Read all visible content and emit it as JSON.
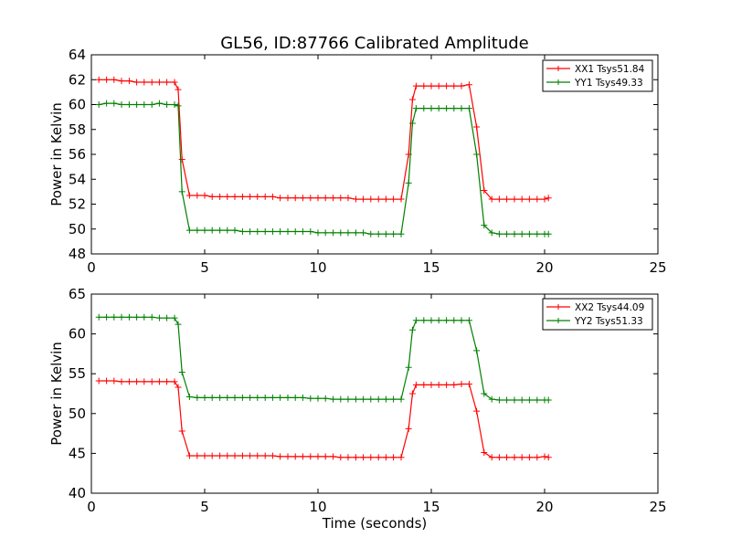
{
  "title": "GL56, ID:87766 Calibrated Amplitude",
  "xlabel": "Time (seconds)",
  "colors": {
    "red": "#ff0000",
    "green": "#008000",
    "axis": "#000000"
  },
  "chart_data": [
    {
      "type": "line",
      "title": "GL56, ID:87766 Calibrated Amplitude",
      "xlabel": "",
      "ylabel": "Power in Kelvin",
      "xlim": [
        0,
        25
      ],
      "ylim": [
        48,
        64
      ],
      "xticks": [
        0,
        5,
        10,
        15,
        20,
        25
      ],
      "yticks": [
        48,
        50,
        52,
        54,
        56,
        58,
        60,
        62,
        64
      ],
      "legend": "top-right",
      "grid": false,
      "x": [
        0.33,
        0.67,
        1.0,
        1.33,
        1.67,
        2.0,
        2.33,
        2.67,
        3.0,
        3.33,
        3.67,
        3.83,
        4.0,
        4.33,
        4.67,
        5.0,
        5.33,
        5.67,
        6.0,
        6.33,
        6.67,
        7.0,
        7.33,
        7.67,
        8.0,
        8.33,
        8.67,
        9.0,
        9.33,
        9.67,
        10.0,
        10.33,
        10.67,
        11.0,
        11.33,
        11.67,
        12.0,
        12.33,
        12.67,
        13.0,
        13.33,
        13.67,
        14.0,
        14.17,
        14.33,
        14.67,
        15.0,
        15.33,
        15.67,
        16.0,
        16.33,
        16.67,
        17.0,
        17.33,
        17.67,
        18.0,
        18.33,
        18.67,
        19.0,
        19.33,
        19.67,
        20.0,
        20.17
      ],
      "series": [
        {
          "name": "XX1 Tsys51.84",
          "color": "#ff0000",
          "values": [
            62.0,
            62.0,
            62.0,
            61.9,
            61.9,
            61.8,
            61.8,
            61.8,
            61.8,
            61.8,
            61.8,
            61.2,
            55.6,
            52.7,
            52.7,
            52.7,
            52.6,
            52.6,
            52.6,
            52.6,
            52.6,
            52.6,
            52.6,
            52.6,
            52.6,
            52.5,
            52.5,
            52.5,
            52.5,
            52.5,
            52.5,
            52.5,
            52.5,
            52.5,
            52.5,
            52.4,
            52.4,
            52.4,
            52.4,
            52.4,
            52.4,
            52.4,
            56.0,
            60.4,
            61.5,
            61.5,
            61.5,
            61.5,
            61.5,
            61.5,
            61.5,
            61.6,
            58.2,
            53.1,
            52.4,
            52.4,
            52.4,
            52.4,
            52.4,
            52.4,
            52.4,
            52.4,
            52.5
          ]
        },
        {
          "name": "YY1 Tsys49.33",
          "color": "#008000",
          "values": [
            60.0,
            60.1,
            60.1,
            60.0,
            60.0,
            60.0,
            60.0,
            60.0,
            60.1,
            60.0,
            60.0,
            59.9,
            53.0,
            49.9,
            49.9,
            49.9,
            49.9,
            49.9,
            49.9,
            49.9,
            49.8,
            49.8,
            49.8,
            49.8,
            49.8,
            49.8,
            49.8,
            49.8,
            49.8,
            49.8,
            49.7,
            49.7,
            49.7,
            49.7,
            49.7,
            49.7,
            49.7,
            49.6,
            49.6,
            49.6,
            49.6,
            49.6,
            53.7,
            58.5,
            59.7,
            59.7,
            59.7,
            59.7,
            59.7,
            59.7,
            59.7,
            59.7,
            56.0,
            50.3,
            49.7,
            49.6,
            49.6,
            49.6,
            49.6,
            49.6,
            49.6,
            49.6,
            49.6
          ]
        }
      ]
    },
    {
      "type": "line",
      "xlabel": "Time (seconds)",
      "ylabel": "Power in Kelvin",
      "xlim": [
        0,
        25
      ],
      "ylim": [
        40,
        65
      ],
      "xticks": [
        0,
        5,
        10,
        15,
        20,
        25
      ],
      "yticks": [
        40,
        45,
        50,
        55,
        60,
        65
      ],
      "legend": "top-right",
      "grid": false,
      "x": [
        0.33,
        0.67,
        1.0,
        1.33,
        1.67,
        2.0,
        2.33,
        2.67,
        3.0,
        3.33,
        3.67,
        3.83,
        4.0,
        4.33,
        4.67,
        5.0,
        5.33,
        5.67,
        6.0,
        6.33,
        6.67,
        7.0,
        7.33,
        7.67,
        8.0,
        8.33,
        8.67,
        9.0,
        9.33,
        9.67,
        10.0,
        10.33,
        10.67,
        11.0,
        11.33,
        11.67,
        12.0,
        12.33,
        12.67,
        13.0,
        13.33,
        13.67,
        14.0,
        14.17,
        14.33,
        14.67,
        15.0,
        15.33,
        15.67,
        16.0,
        16.33,
        16.67,
        17.0,
        17.33,
        17.67,
        18.0,
        18.33,
        18.67,
        19.0,
        19.33,
        19.67,
        20.0,
        20.17
      ],
      "series": [
        {
          "name": "XX2 Tsys44.09",
          "color": "#ff0000",
          "values": [
            54.1,
            54.1,
            54.1,
            54.0,
            54.0,
            54.0,
            54.0,
            54.0,
            54.0,
            54.0,
            54.0,
            53.3,
            47.8,
            44.7,
            44.7,
            44.7,
            44.7,
            44.7,
            44.7,
            44.7,
            44.7,
            44.7,
            44.7,
            44.7,
            44.7,
            44.6,
            44.6,
            44.6,
            44.6,
            44.6,
            44.6,
            44.6,
            44.6,
            44.5,
            44.5,
            44.5,
            44.5,
            44.5,
            44.5,
            44.5,
            44.5,
            44.5,
            48.1,
            52.5,
            53.6,
            53.6,
            53.6,
            53.6,
            53.6,
            53.6,
            53.7,
            53.7,
            50.3,
            45.1,
            44.5,
            44.5,
            44.5,
            44.5,
            44.5,
            44.5,
            44.5,
            44.6,
            44.5
          ]
        },
        {
          "name": "YY2 Tsys51.33",
          "color": "#008000",
          "values": [
            62.1,
            62.1,
            62.1,
            62.1,
            62.1,
            62.1,
            62.1,
            62.1,
            62.0,
            62.0,
            62.0,
            61.2,
            55.2,
            52.1,
            52.0,
            52.0,
            52.0,
            52.0,
            52.0,
            52.0,
            52.0,
            52.0,
            52.0,
            52.0,
            52.0,
            52.0,
            52.0,
            52.0,
            52.0,
            51.9,
            51.9,
            51.9,
            51.8,
            51.8,
            51.8,
            51.8,
            51.8,
            51.8,
            51.8,
            51.8,
            51.8,
            51.8,
            55.8,
            60.5,
            61.7,
            61.7,
            61.7,
            61.7,
            61.7,
            61.7,
            61.7,
            61.7,
            57.9,
            52.5,
            51.8,
            51.7,
            51.7,
            51.7,
            51.7,
            51.7,
            51.7,
            51.7,
            51.7
          ]
        }
      ]
    }
  ]
}
